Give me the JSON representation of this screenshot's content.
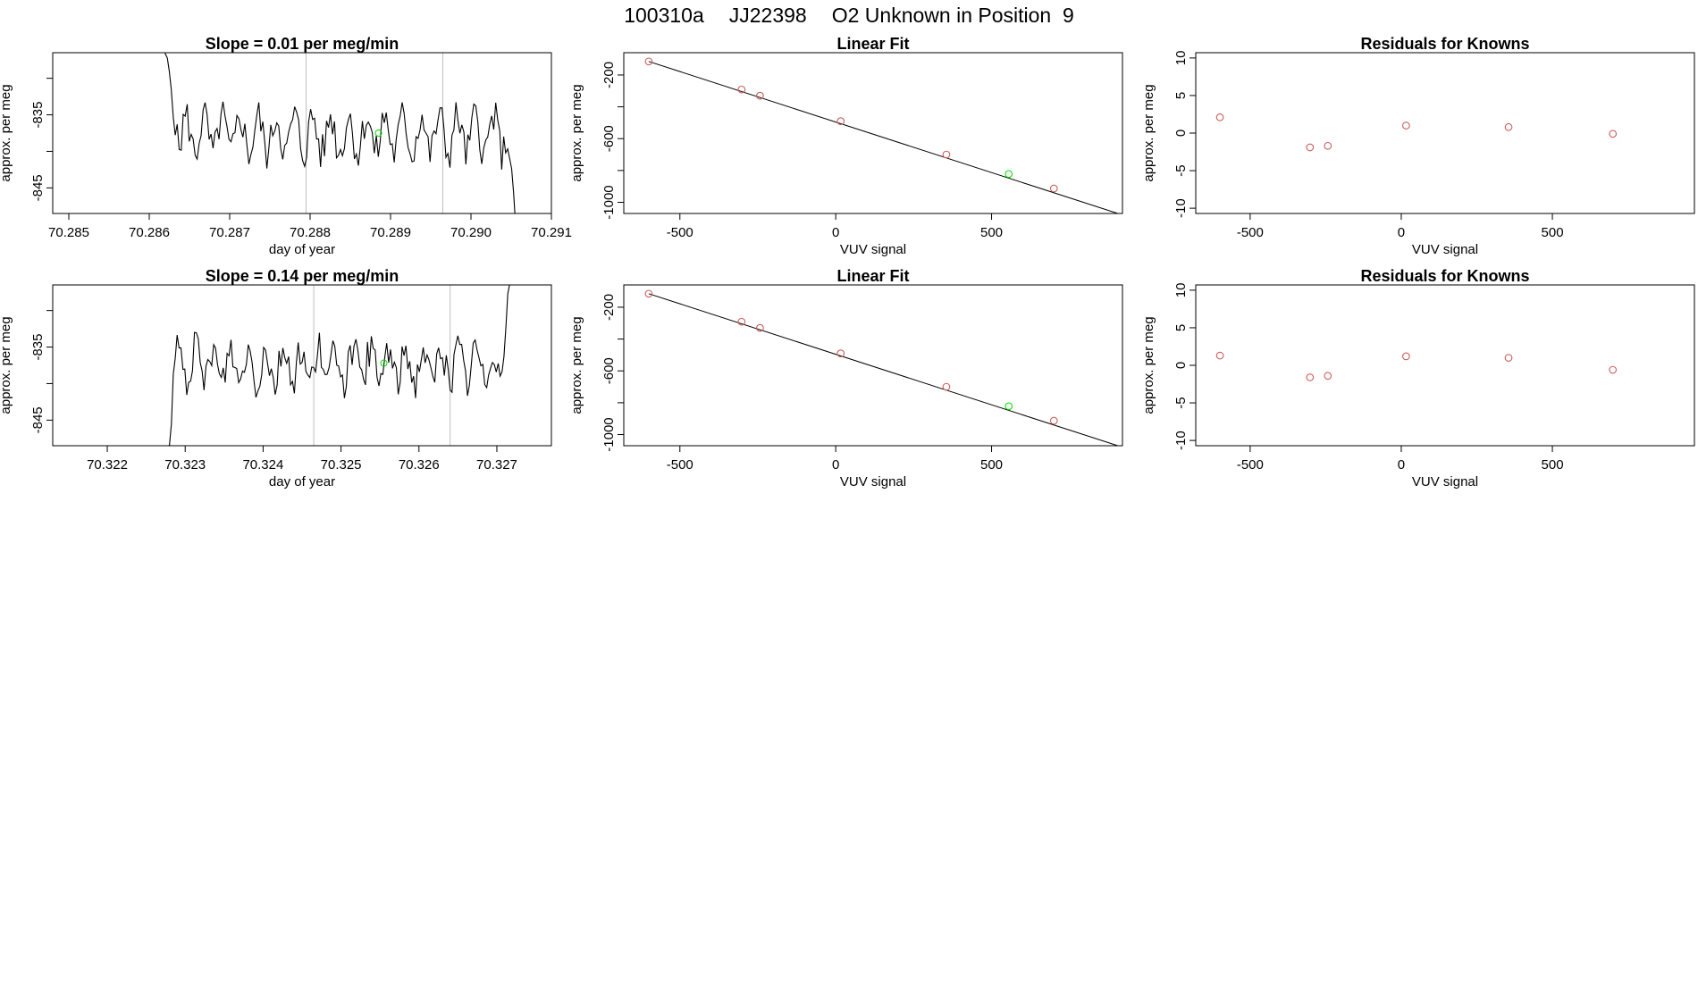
{
  "header": {
    "run_id": "100310a",
    "tank_id": "JJ22398",
    "description": "O2 Unknown in Position  9"
  },
  "colors": {
    "line": "#000000",
    "known_point": "#cd5c5c",
    "unknown_point": "#00dd00",
    "marker_line": "#bfbfbf",
    "frame": "#000000"
  },
  "chart_data": [
    {
      "type": "line",
      "title": "Slope =  0.01  per meg/min",
      "xlabel": "day of year",
      "ylabel": "approx. per meg",
      "xlim": [
        70.2848,
        70.291
      ],
      "ylim": [
        -848.5,
        -826.5
      ],
      "xticks": [
        "70.285",
        "70.286",
        "70.287",
        "70.288",
        "70.289",
        "70.290",
        "70.291"
      ],
      "xtick_values": [
        70.285,
        70.286,
        70.287,
        70.288,
        70.289,
        70.29,
        70.291
      ],
      "yticks": [
        "-835",
        "-845"
      ],
      "ytick_values": [
        -835,
        -845
      ],
      "extra_y_ticks": [
        -830,
        -840
      ],
      "vlines": [
        70.28795,
        70.28965
      ],
      "unknown_point": {
        "x": 70.28885,
        "y": -837.5
      },
      "series": {
        "x_start": 70.28615,
        "x_end": 70.29058,
        "n_points": 180,
        "start_y": -824,
        "mean": -837.7,
        "noise": 3.2,
        "period": 0.000225,
        "end_y": -853
      }
    },
    {
      "type": "scatter",
      "title": "Linear Fit",
      "xlabel": "VUV signal",
      "ylabel": "approx. per meg",
      "xlim": [
        -680,
        920
      ],
      "ylim": [
        -1070,
        -60
      ],
      "xticks": [
        "-500",
        "0",
        "500"
      ],
      "xtick_values": [
        -500,
        0,
        500
      ],
      "yticks": [
        "-200",
        "-600",
        "-1000"
      ],
      "ytick_values": [
        -200,
        -600,
        -1000
      ],
      "extra_y_ticks": [
        -400,
        -800
      ],
      "fit_line": {
        "x": [
          -600,
          905
        ],
        "y": [
          -115,
          -1070
        ]
      },
      "known_points": [
        {
          "x": -600,
          "y": -115
        },
        {
          "x": -302,
          "y": -291
        },
        {
          "x": -243,
          "y": -330
        },
        {
          "x": 16,
          "y": -490
        },
        {
          "x": 355,
          "y": -700
        },
        {
          "x": 700,
          "y": -913
        }
      ],
      "unknown_points": [
        {
          "x": 555,
          "y": -822
        }
      ]
    },
    {
      "type": "scatter",
      "title": "Residuals for Knowns",
      "xlabel": "VUV signal",
      "ylabel": "approx. per meg",
      "xlim": [
        -680,
        970
      ],
      "ylim": [
        -10.7,
        10.7
      ],
      "xticks": [
        "-500",
        "0",
        "500"
      ],
      "xtick_values": [
        -500,
        0,
        500
      ],
      "yticks": [
        "10",
        "5",
        "0",
        "-5",
        "-10"
      ],
      "ytick_values": [
        10,
        5,
        0,
        -5,
        -10
      ],
      "known_points": [
        {
          "x": -600,
          "y": 2.1
        },
        {
          "x": -302,
          "y": -1.9
        },
        {
          "x": -243,
          "y": -1.7
        },
        {
          "x": 16,
          "y": 1.0
        },
        {
          "x": 355,
          "y": 0.8
        },
        {
          "x": 700,
          "y": -0.1
        }
      ]
    },
    {
      "type": "line",
      "title": "Slope =  0.14  per meg/min",
      "xlabel": "day of year",
      "ylabel": "approx. per meg",
      "xlim": [
        70.3213,
        70.3277
      ],
      "ylim": [
        -848.5,
        -826.5
      ],
      "xticks": [
        "70.322",
        "70.323",
        "70.324",
        "70.325",
        "70.326",
        "70.327"
      ],
      "xtick_values": [
        70.322,
        70.323,
        70.324,
        70.325,
        70.326,
        70.327
      ],
      "yticks": [
        "-835",
        "-845"
      ],
      "ytick_values": [
        -835,
        -845
      ],
      "extra_y_ticks": [
        -830,
        -840
      ],
      "vlines": [
        70.32465,
        70.3264
      ],
      "unknown_point": {
        "x": 70.32555,
        "y": -837.2
      },
      "series": {
        "x_start": 70.32265,
        "x_end": 70.32719,
        "n_points": 185,
        "start_y": -860,
        "mean": -837.5,
        "noise": 3.0,
        "period": 0.000225,
        "end_y": -824
      }
    },
    {
      "type": "scatter",
      "title": "Linear Fit",
      "xlabel": "VUV signal",
      "ylabel": "approx. per meg",
      "xlim": [
        -680,
        920
      ],
      "ylim": [
        -1070,
        -60
      ],
      "xticks": [
        "-500",
        "0",
        "500"
      ],
      "xtick_values": [
        -500,
        0,
        500
      ],
      "yticks": [
        "-200",
        "-600",
        "-1000"
      ],
      "ytick_values": [
        -200,
        -600,
        -1000
      ],
      "extra_y_ticks": [
        -400,
        -800
      ],
      "fit_line": {
        "x": [
          -600,
          905
        ],
        "y": [
          -115,
          -1070
        ]
      },
      "known_points": [
        {
          "x": -600,
          "y": -115
        },
        {
          "x": -302,
          "y": -291
        },
        {
          "x": -243,
          "y": -330
        },
        {
          "x": 16,
          "y": -490
        },
        {
          "x": 355,
          "y": -700
        },
        {
          "x": 700,
          "y": -913
        }
      ],
      "unknown_points": [
        {
          "x": 555,
          "y": -822
        }
      ]
    },
    {
      "type": "scatter",
      "title": "Residuals for Knowns",
      "xlabel": "VUV signal",
      "ylabel": "approx. per meg",
      "xlim": [
        -680,
        970
      ],
      "ylim": [
        -10.7,
        10.7
      ],
      "xticks": [
        "-500",
        "0",
        "500"
      ],
      "xtick_values": [
        -500,
        0,
        500
      ],
      "yticks": [
        "10",
        "5",
        "0",
        "-5",
        "-10"
      ],
      "ytick_values": [
        10,
        5,
        0,
        -5,
        -10
      ],
      "known_points": [
        {
          "x": -600,
          "y": 1.3
        },
        {
          "x": -302,
          "y": -1.6
        },
        {
          "x": -243,
          "y": -1.4
        },
        {
          "x": 16,
          "y": 1.2
        },
        {
          "x": 355,
          "y": 1.0
        },
        {
          "x": 700,
          "y": -0.6
        }
      ]
    }
  ]
}
